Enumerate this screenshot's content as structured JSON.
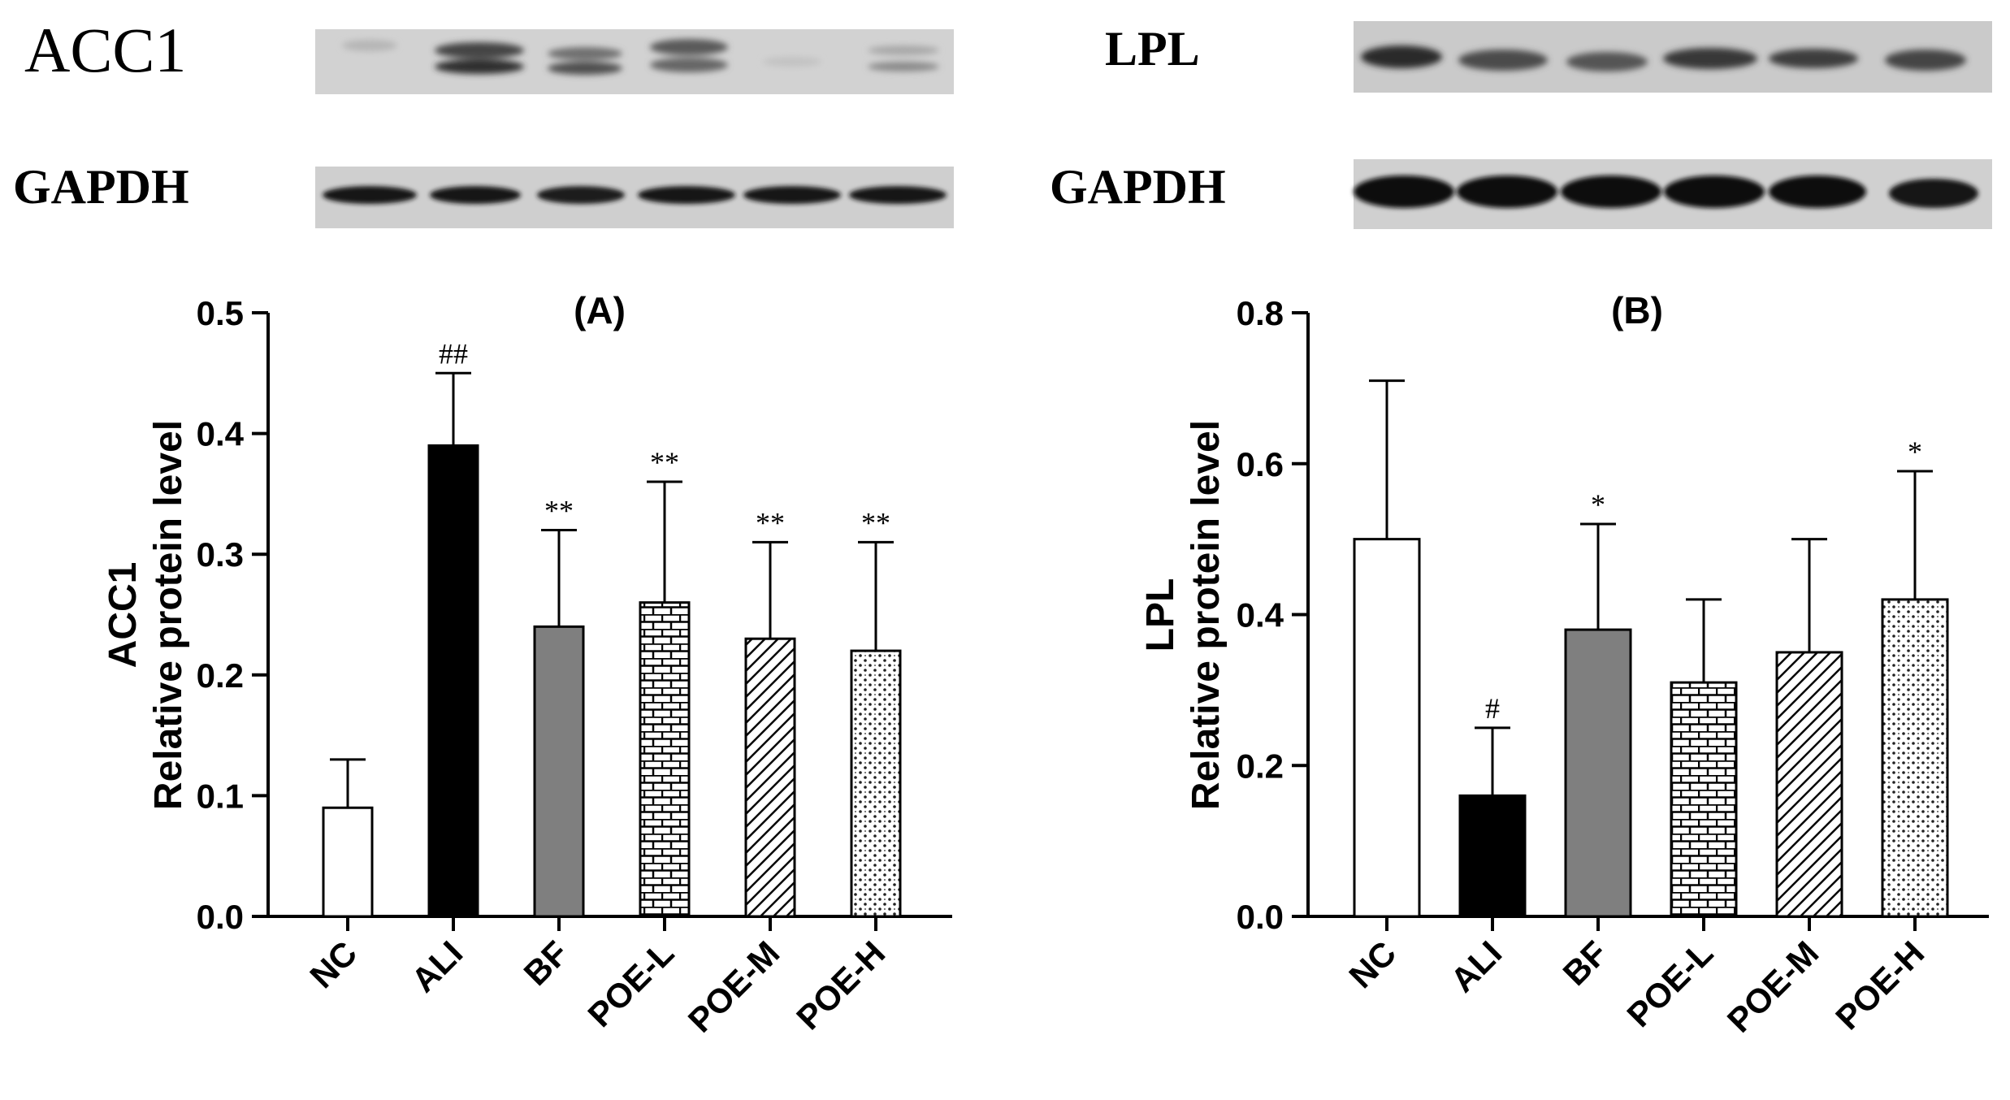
{
  "blots": {
    "left": {
      "target_label": "ACC1",
      "control_label": "GAPDH",
      "lanes": 6
    },
    "right": {
      "target_label": "LPL",
      "control_label": "GAPDH",
      "lanes": 6
    }
  },
  "chart_data": [
    {
      "type": "bar",
      "title": "(A)",
      "ylabel_line1": "ACC1",
      "ylabel_line2": "Relative protein level",
      "categories": [
        "NC",
        "ALI",
        "BF",
        "POE-L",
        "POE-M",
        "POE-H"
      ],
      "values": [
        0.09,
        0.39,
        0.24,
        0.26,
        0.23,
        0.22
      ],
      "errors": [
        0.04,
        0.06,
        0.08,
        0.1,
        0.08,
        0.09
      ],
      "annotations": [
        "",
        "##",
        "**",
        "**",
        "**",
        "**"
      ],
      "fills": [
        "white",
        "black",
        "gray",
        "brick",
        "diagonal",
        "dots"
      ],
      "ylim": [
        0,
        0.5
      ],
      "yticks": [
        "0.0",
        "0.1",
        "0.2",
        "0.3",
        "0.4",
        "0.5"
      ],
      "ytick_values": [
        0,
        0.1,
        0.2,
        0.3,
        0.4,
        0.5
      ]
    },
    {
      "type": "bar",
      "title": "(B)",
      "ylabel_line1": "LPL",
      "ylabel_line2": "Relative protein level",
      "categories": [
        "NC",
        "ALI",
        "BF",
        "POE-L",
        "POE-M",
        "POE-H"
      ],
      "values": [
        0.5,
        0.16,
        0.38,
        0.31,
        0.35,
        0.42
      ],
      "errors": [
        0.21,
        0.09,
        0.14,
        0.11,
        0.15,
        0.17
      ],
      "annotations": [
        "",
        "#",
        "*",
        "",
        "",
        "*"
      ],
      "fills": [
        "white",
        "black",
        "gray",
        "brick",
        "diagonal",
        "dots"
      ],
      "ylim": [
        0,
        0.8
      ],
      "yticks": [
        "0.0",
        "0.2",
        "0.4",
        "0.6",
        "0.8"
      ],
      "ytick_values": [
        0,
        0.2,
        0.4,
        0.6,
        0.8
      ]
    }
  ]
}
